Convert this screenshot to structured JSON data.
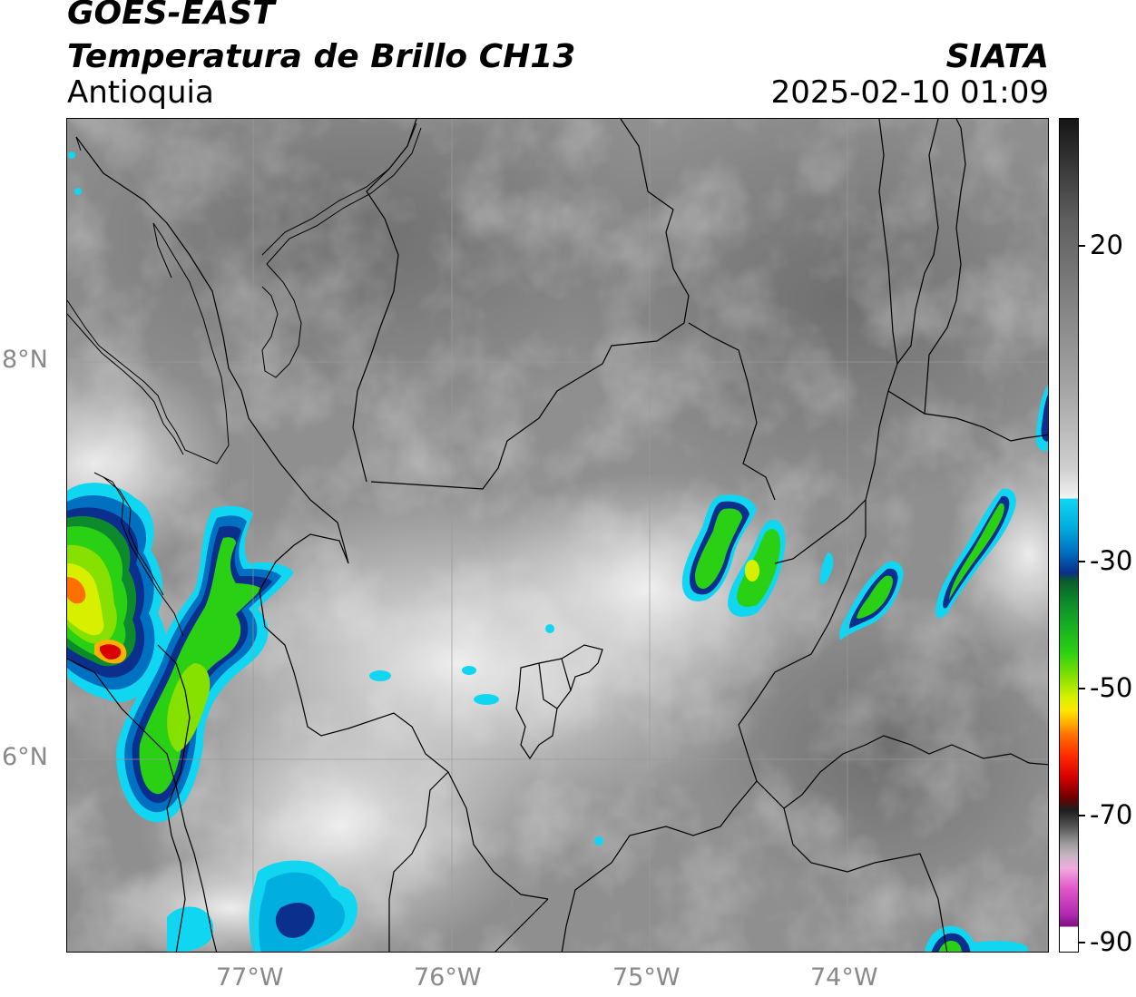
{
  "header": {
    "satellite": "GOES-EAST",
    "product": "Temperatura de Brillo CH13",
    "region": "Antioquia",
    "agency": "SIATA",
    "datetime": "2025-02-10 01:09"
  },
  "axes": {
    "lat_labels": [
      "8°N",
      "6°N"
    ],
    "lon_labels": [
      "77°W",
      "76°W",
      "75°W",
      "74°W"
    ]
  },
  "colorbar": {
    "ticks": [
      "20",
      "-30",
      "-50",
      "-70",
      "-90"
    ]
  },
  "colors": {
    "cold_cyan": "#10d6f2",
    "cold_blue": "#0a2f8c",
    "cold_green": "#2ad013",
    "cold_yellow": "#d8f000",
    "cold_red": "#d80000"
  }
}
